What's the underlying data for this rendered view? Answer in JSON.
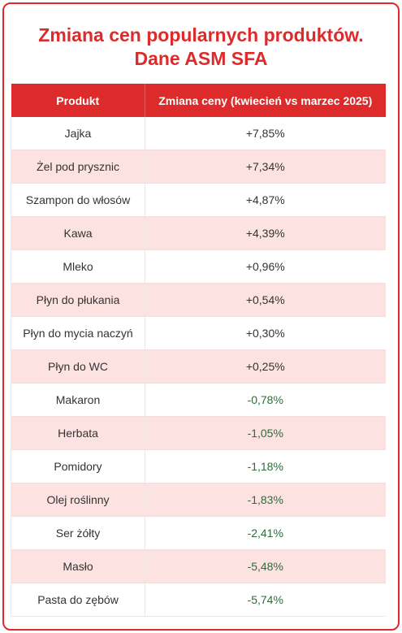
{
  "title_line1": "Zmiana cen popularnych produktów.",
  "title_line2": "Dane ASM SFA",
  "header": {
    "product": "Produkt",
    "change": "Zmiana ceny (kwiecień vs marzec 2025)"
  },
  "colors": {
    "accent": "#dd2b2b",
    "row_alt": "#fde2e2",
    "negative_text": "#2f6b3a"
  },
  "chart_data": {
    "type": "table",
    "columns": [
      "Produkt",
      "Zmiana ceny (kwiecień vs marzec 2025)"
    ],
    "rows": [
      {
        "product": "Jajka",
        "change": "+7,85%",
        "value": 7.85
      },
      {
        "product": "Żel pod prysznic",
        "change": "+7,34%",
        "value": 7.34
      },
      {
        "product": "Szampon do włosów",
        "change": "+4,87%",
        "value": 4.87
      },
      {
        "product": "Kawa",
        "change": "+4,39%",
        "value": 4.39
      },
      {
        "product": "Mleko",
        "change": "+0,96%",
        "value": 0.96
      },
      {
        "product": "Płyn do płukania",
        "change": "+0,54%",
        "value": 0.54
      },
      {
        "product": "Płyn do mycia naczyń",
        "change": "+0,30%",
        "value": 0.3
      },
      {
        "product": "Płyn do WC",
        "change": "+0,25%",
        "value": 0.25
      },
      {
        "product": "Makaron",
        "change": "-0,78%",
        "value": -0.78
      },
      {
        "product": "Herbata",
        "change": "-1,05%",
        "value": -1.05
      },
      {
        "product": "Pomidory",
        "change": "-1,18%",
        "value": -1.18
      },
      {
        "product": "Olej roślinny",
        "change": "-1,83%",
        "value": -1.83
      },
      {
        "product": "Ser żółty",
        "change": "-2,41%",
        "value": -2.41
      },
      {
        "product": "Masło",
        "change": "-5,48%",
        "value": -5.48
      },
      {
        "product": "Pasta do zębów",
        "change": "-5,74%",
        "value": -5.74
      }
    ]
  }
}
